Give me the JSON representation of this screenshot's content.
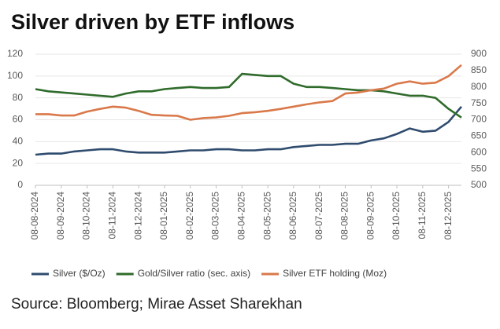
{
  "chart_data": {
    "type": "line",
    "title": "Silver driven by ETF inflows",
    "source": "Source: Bloomberg; Mirae Asset Sharekhan",
    "categories": [
      "08-08-2024",
      null,
      "08-09-2024",
      null,
      "08-10-2024",
      null,
      "08-11-2024",
      null,
      "08-12-2024",
      null,
      "08-01-2025",
      null,
      "08-02-2025",
      null,
      "08-03-2025",
      null,
      "08-04-2025",
      null,
      "08-05-2025",
      null,
      "08-06-2025",
      null,
      "08-07-2025",
      null,
      "08-08-2025",
      null,
      "08-09-2025",
      null,
      "08-10-2025",
      null,
      "08-11-2025",
      null,
      "08-12-2025",
      null
    ],
    "series": [
      {
        "name": "Silver ($/Oz)",
        "color": "#2f4b6e",
        "values": [
          28,
          29,
          29,
          31,
          32,
          33,
          33,
          31,
          30,
          30,
          30,
          31,
          32,
          32,
          33,
          33,
          32,
          32,
          33,
          33,
          35,
          36,
          37,
          37,
          38,
          38,
          41,
          43,
          47,
          52,
          49,
          50,
          58,
          72
        ]
      },
      {
        "name": "Gold/Silver ratio (sec. axis)",
        "color": "#2f6b2b",
        "values": [
          88,
          86,
          85,
          84,
          83,
          82,
          81,
          84,
          86,
          86,
          88,
          89,
          90,
          89,
          89,
          90,
          102,
          101,
          100,
          100,
          93,
          90,
          90,
          89,
          88,
          87,
          87,
          86,
          84,
          82,
          82,
          80,
          70,
          62
        ]
      },
      {
        "name": "Silver ETF holding (Moz)",
        "color": "#d9794a",
        "axis": "y2",
        "values": [
          717,
          717,
          713,
          713,
          725,
          733,
          740,
          737,
          727,
          715,
          713,
          712,
          700,
          705,
          707,
          712,
          720,
          723,
          727,
          733,
          740,
          747,
          753,
          757,
          780,
          783,
          790,
          795,
          810,
          817,
          810,
          813,
          833,
          867
        ]
      }
    ],
    "ylim": [
      0,
      120
    ],
    "yticks": [
      0,
      20,
      40,
      60,
      80,
      100,
      120
    ],
    "y2lim": [
      500,
      900
    ],
    "y2ticks": [
      500,
      550,
      600,
      650,
      700,
      750,
      800,
      850,
      900
    ],
    "grid": true,
    "legend": "bottom"
  }
}
